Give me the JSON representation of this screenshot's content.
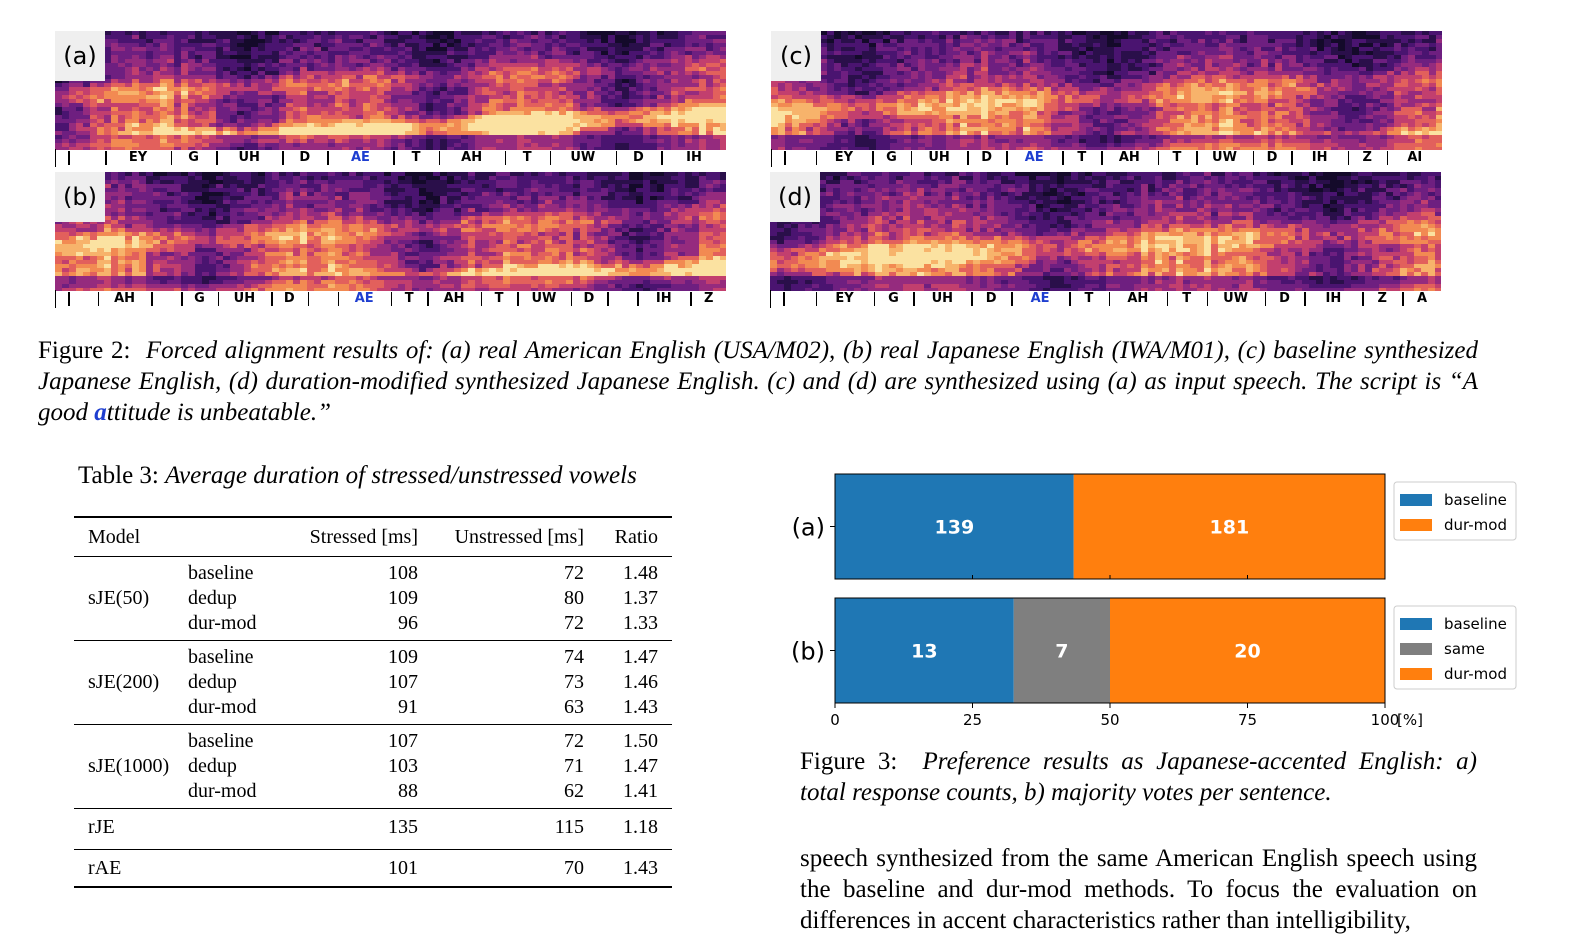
{
  "figure2": {
    "panels": [
      {
        "label": "(a)",
        "phones": [
          "",
          "EY",
          "G",
          "UH",
          "D",
          "AE",
          "T",
          "AH",
          "T",
          "UW",
          "D",
          "IH"
        ],
        "stress": 5
      },
      {
        "label": "(b)",
        "phones": [
          "",
          "AH",
          "",
          "G",
          "UH",
          "D",
          "",
          "AE",
          "T",
          "AH",
          "T",
          "UW",
          "D",
          "",
          "IH",
          "Z"
        ],
        "stress": 7
      },
      {
        "label": "(c)",
        "phones": [
          "",
          "EY",
          "G",
          "UH",
          "D",
          "AE",
          "T",
          "AH",
          "T",
          "UW",
          "D",
          "IH",
          "Z",
          "AI"
        ],
        "stress": 5
      },
      {
        "label": "(d)",
        "phones": [
          "",
          "EY",
          "G",
          "UH",
          "D",
          "AE",
          "T",
          "AH",
          "T",
          "UW",
          "D",
          "IH",
          "Z",
          "A"
        ],
        "stress": 5
      }
    ],
    "caption_prefix": "Figure 2:",
    "caption_text_1": "Forced alignment results of: (a) real American English (USA/M02), (b) real Japanese English (IWA/M01), (c) baseline synthesized Japanese English, (d) duration-modified synthesized Japanese English. (c) and (d) are synthesized using (a) as input speech. The script is “A good ",
    "caption_highlight": "a",
    "caption_text_2": "ttitude is unbeatable.”",
    "highlight_color": "#1e3ed0"
  },
  "table3": {
    "title_prefix": "Table 3:",
    "title_text": "Average duration of stressed/unstressed vowels",
    "headers": {
      "model": "Model",
      "stressed": "Stressed [ms]",
      "unstressed": "Unstressed [ms]",
      "ratio": "Ratio"
    },
    "groups": [
      {
        "model": "sJE(50)",
        "rows": [
          {
            "method": "baseline",
            "stressed": "108",
            "unstressed": "72",
            "ratio": "1.48"
          },
          {
            "method": "dedup",
            "stressed": "109",
            "unstressed": "80",
            "ratio": "1.37"
          },
          {
            "method": "dur-mod",
            "stressed": "96",
            "unstressed": "72",
            "ratio": "1.33"
          }
        ]
      },
      {
        "model": "sJE(200)",
        "rows": [
          {
            "method": "baseline",
            "stressed": "109",
            "unstressed": "74",
            "ratio": "1.47"
          },
          {
            "method": "dedup",
            "stressed": "107",
            "unstressed": "73",
            "ratio": "1.46"
          },
          {
            "method": "dur-mod",
            "stressed": "91",
            "unstressed": "63",
            "ratio": "1.43"
          }
        ]
      },
      {
        "model": "sJE(1000)",
        "rows": [
          {
            "method": "baseline",
            "stressed": "107",
            "unstressed": "72",
            "ratio": "1.50"
          },
          {
            "method": "dedup",
            "stressed": "103",
            "unstressed": "71",
            "ratio": "1.47"
          },
          {
            "method": "dur-mod",
            "stressed": "88",
            "unstressed": "62",
            "ratio": "1.41"
          }
        ]
      }
    ],
    "singles": [
      {
        "model": "rJE",
        "stressed": "135",
        "unstressed": "115",
        "ratio": "1.18"
      },
      {
        "model": "rAE",
        "stressed": "101",
        "unstressed": "70",
        "ratio": "1.43"
      }
    ]
  },
  "chart_data": {
    "type": "bar",
    "orientation": "horizontal-stacked",
    "categories": [
      "(a)",
      "(b)"
    ],
    "bars": [
      {
        "category": "(a)",
        "segments": [
          {
            "name": "baseline",
            "count": 139,
            "percent": 43.4
          },
          {
            "name": "dur-mod",
            "count": 181,
            "percent": 56.6
          }
        ],
        "legend": [
          "baseline",
          "dur-mod"
        ]
      },
      {
        "category": "(b)",
        "segments": [
          {
            "name": "baseline",
            "count": 13,
            "percent": 32.5
          },
          {
            "name": "same",
            "count": 7,
            "percent": 17.5
          },
          {
            "name": "dur-mod",
            "count": 20,
            "percent": 50.0
          }
        ],
        "legend": [
          "baseline",
          "same",
          "dur-mod"
        ]
      }
    ],
    "xlim": [
      0,
      100
    ],
    "xticks": [
      "0",
      "25",
      "50",
      "75",
      "100"
    ],
    "xunit": "[%]",
    "colors": {
      "baseline": "#1f77b4",
      "same": "#7f7f7f",
      "dur-mod": "#ff7f0e"
    },
    "legend_position": "right"
  },
  "figure3": {
    "caption_prefix": "Figure 3:",
    "caption_text": "Preference results as Japanese-accented English: a) total response counts, b) majority votes per sentence."
  },
  "body_text": "speech synthesized from the same American English speech using the baseline and dur-mod methods. To focus the evaluation on differences in accent characteristics rather than intelligibility,"
}
